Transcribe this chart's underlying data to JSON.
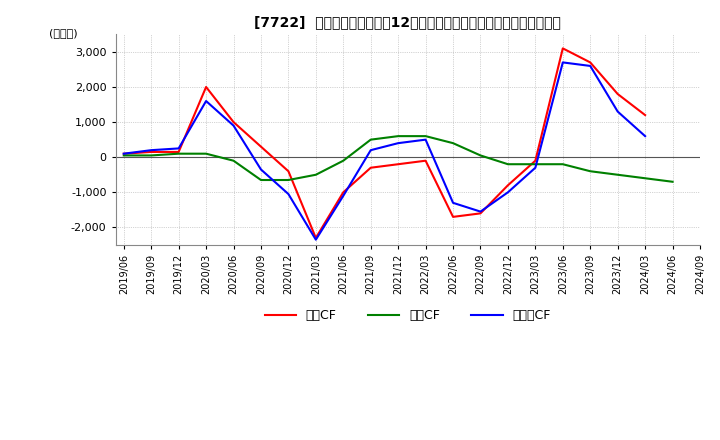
{
  "title": "[7722]  キャッシュフローの12か月移動合計の対前年同期増減額の推移",
  "ylabel": "(百万円)",
  "ylim": [
    -2500,
    3500
  ],
  "yticks": [
    -2000,
    -1000,
    0,
    1000,
    2000,
    3000
  ],
  "legend_labels": [
    "営業CF",
    "投資CF",
    "フリーCF"
  ],
  "colors": {
    "operating": "#ff0000",
    "investing": "#008000",
    "free": "#0000ff"
  },
  "x_labels": [
    "2019/06",
    "2019/09",
    "2019/12",
    "2020/03",
    "2020/06",
    "2020/09",
    "2020/12",
    "2021/03",
    "2021/06",
    "2021/09",
    "2021/12",
    "2022/03",
    "2022/06",
    "2022/09",
    "2022/12",
    "2023/03",
    "2023/06",
    "2023/09",
    "2023/12",
    "2024/03",
    "2024/06",
    "2024/09"
  ],
  "operating_cf": [
    100,
    150,
    150,
    2000,
    1000,
    300,
    -400,
    -2300,
    -1000,
    -300,
    -200,
    -100,
    -1700,
    -1600,
    -800,
    -100,
    3100,
    2700,
    1800,
    1200,
    null,
    null
  ],
  "investing_cf": [
    50,
    50,
    100,
    100,
    -100,
    -650,
    -650,
    -500,
    -100,
    500,
    600,
    600,
    400,
    50,
    -200,
    -200,
    -200,
    -400,
    -500,
    -600,
    -700,
    null
  ],
  "free_cf": [
    100,
    200,
    250,
    1600,
    900,
    -350,
    -1050,
    -2350,
    -1100,
    200,
    400,
    500,
    -1300,
    -1550,
    -1000,
    -300,
    2700,
    2600,
    1300,
    600,
    null,
    null
  ]
}
